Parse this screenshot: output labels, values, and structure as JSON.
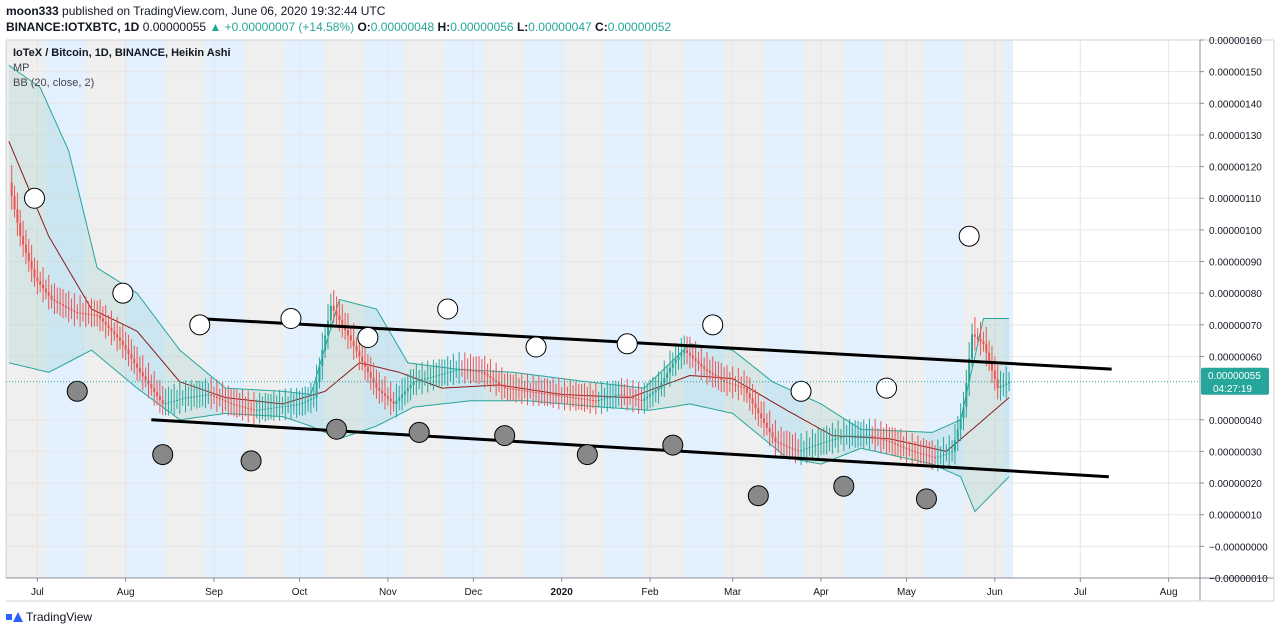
{
  "header": {
    "author": "moon333",
    "published": "published on TradingView.com, June 06, 2020 19:32:44 UTC",
    "symbol": "BINANCE:IOTXBTC, 1D",
    "last": "0.00000055",
    "change": "▲ +0.00000007 (+14.58%)",
    "o_label": "O:",
    "o": "0.00000048",
    "h_label": "H:",
    "h": "0.00000056",
    "l_label": "L:",
    "l": "0.00000047",
    "c_label": "C:",
    "c": "0.00000052"
  },
  "legend": {
    "title": "IoTeX / Bitcoin, 1D, BINANCE, Heikin Ashi",
    "indicator1": "MP",
    "indicator2": "BB (20, close, 2)"
  },
  "footer": {
    "brand": "TradingView"
  },
  "colors": {
    "up": "#26a69a",
    "down": "#ef5350",
    "band": "#26a69a",
    "basis": "#8b1a1a",
    "stripe_blue": "#e3f0fd",
    "stripe_gray": "#efefef",
    "trendline": "#000000"
  },
  "chart_data": {
    "type": "line",
    "title": "IoTeX / Bitcoin, 1D, BINANCE, Heikin Ashi",
    "xlabel": "",
    "ylabel": "",
    "x_range": [
      "2019-06-20",
      "2020-08-12"
    ],
    "ylim": [
      -1e-07,
      1.6e-06
    ],
    "grid": true,
    "x_ticks": [
      {
        "date": "2019-07-01",
        "label": "Jul"
      },
      {
        "date": "2019-08-01",
        "label": "Aug"
      },
      {
        "date": "2019-09-01",
        "label": "Sep"
      },
      {
        "date": "2019-10-01",
        "label": "Oct"
      },
      {
        "date": "2019-11-01",
        "label": "Nov"
      },
      {
        "date": "2019-12-01",
        "label": "Dec"
      },
      {
        "date": "2020-01-01",
        "label": "2020"
      },
      {
        "date": "2020-02-01",
        "label": "Feb"
      },
      {
        "date": "2020-03-01",
        "label": "Mar"
      },
      {
        "date": "2020-04-01",
        "label": "Apr"
      },
      {
        "date": "2020-05-01",
        "label": "May"
      },
      {
        "date": "2020-06-01",
        "label": "Jun"
      },
      {
        "date": "2020-07-01",
        "label": "Jul"
      },
      {
        "date": "2020-08-01",
        "label": "Aug"
      }
    ],
    "y_ticks": [
      {
        "v": 1.6e-06,
        "label": "0.00000160"
      },
      {
        "v": 1.5e-06,
        "label": "0.00000150"
      },
      {
        "v": 1.4e-06,
        "label": "0.00000140"
      },
      {
        "v": 1.3e-06,
        "label": "0.00000130"
      },
      {
        "v": 1.2e-06,
        "label": "0.00000120"
      },
      {
        "v": 1.1e-06,
        "label": "0.00000110"
      },
      {
        "v": 1e-06,
        "label": "0.00000100"
      },
      {
        "v": 9e-07,
        "label": "0.00000090"
      },
      {
        "v": 8e-07,
        "label": "0.00000080"
      },
      {
        "v": 7e-07,
        "label": "0.00000070"
      },
      {
        "v": 6e-07,
        "label": "0.00000060"
      },
      {
        "v": 4e-07,
        "label": "0.00000040"
      },
      {
        "v": 3e-07,
        "label": "0.00000030"
      },
      {
        "v": 2e-07,
        "label": "0.00000020"
      },
      {
        "v": 1e-07,
        "label": "0.00000010"
      },
      {
        "v": 0,
        "label": "−0.00000000"
      },
      {
        "v": -1e-07,
        "label": "−0.00000010"
      }
    ],
    "price_tag": {
      "value": 5.2e-07,
      "label": "0.00000055",
      "countdown": "04:27:19"
    },
    "series": [
      {
        "kind": "close",
        "points": [
          [
            "2019-06-21",
            1.15e-06
          ],
          [
            "2019-06-25",
            9.8e-07
          ],
          [
            "2019-06-30",
            8.5e-07
          ],
          [
            "2019-07-06",
            7.8e-07
          ],
          [
            "2019-07-14",
            7.4e-07
          ],
          [
            "2019-07-22",
            7.3e-07
          ],
          [
            "2019-07-30",
            6.5e-07
          ],
          [
            "2019-08-06",
            5.5e-07
          ],
          [
            "2019-08-14",
            4.5e-07
          ],
          [
            "2019-08-22",
            4.7e-07
          ],
          [
            "2019-08-30",
            4.8e-07
          ],
          [
            "2019-09-07",
            4.5e-07
          ],
          [
            "2019-09-15",
            4.3e-07
          ],
          [
            "2019-09-23",
            4.4e-07
          ],
          [
            "2019-10-01",
            4.5e-07
          ],
          [
            "2019-10-06",
            4.7e-07
          ],
          [
            "2019-10-09",
            6.2e-07
          ],
          [
            "2019-10-12",
            7.6e-07
          ],
          [
            "2019-10-16",
            7e-07
          ],
          [
            "2019-10-22",
            6e-07
          ],
          [
            "2019-10-28",
            5e-07
          ],
          [
            "2019-11-03",
            4.5e-07
          ],
          [
            "2019-11-10",
            5.2e-07
          ],
          [
            "2019-11-18",
            5.4e-07
          ],
          [
            "2019-11-26",
            5.6e-07
          ],
          [
            "2019-12-04",
            5.5e-07
          ],
          [
            "2019-12-12",
            5e-07
          ],
          [
            "2019-12-20",
            4.9e-07
          ],
          [
            "2019-12-28",
            4.8e-07
          ],
          [
            "2020-01-05",
            4.7e-07
          ],
          [
            "2020-01-13",
            4.6e-07
          ],
          [
            "2020-01-21",
            4.8e-07
          ],
          [
            "2020-01-29",
            4.6e-07
          ],
          [
            "2020-02-04",
            5e-07
          ],
          [
            "2020-02-09",
            5.8e-07
          ],
          [
            "2020-02-13",
            6.2e-07
          ],
          [
            "2020-02-20",
            5.6e-07
          ],
          [
            "2020-02-27",
            5.2e-07
          ],
          [
            "2020-03-05",
            5e-07
          ],
          [
            "2020-03-10",
            4.2e-07
          ],
          [
            "2020-03-16",
            3.3e-07
          ],
          [
            "2020-03-24",
            3e-07
          ],
          [
            "2020-04-02",
            3.3e-07
          ],
          [
            "2020-04-10",
            3.5e-07
          ],
          [
            "2020-04-18",
            3.5e-07
          ],
          [
            "2020-04-25",
            3.3e-07
          ],
          [
            "2020-05-03",
            3e-07
          ],
          [
            "2020-05-11",
            2.8e-07
          ],
          [
            "2020-05-17",
            3e-07
          ],
          [
            "2020-05-21",
            4.4e-07
          ],
          [
            "2020-05-24",
            6.7e-07
          ],
          [
            "2020-05-28",
            6.4e-07
          ],
          [
            "2020-06-02",
            5e-07
          ],
          [
            "2020-06-06",
            5.2e-07
          ]
        ]
      },
      {
        "kind": "basis",
        "points": [
          [
            "2019-06-21",
            1.28e-06
          ],
          [
            "2019-07-05",
            9.8e-07
          ],
          [
            "2019-07-20",
            7.5e-07
          ],
          [
            "2019-08-05",
            6.8e-07
          ],
          [
            "2019-08-20",
            5.2e-07
          ],
          [
            "2019-09-05",
            4.7e-07
          ],
          [
            "2019-09-25",
            4.5e-07
          ],
          [
            "2019-10-10",
            4.9e-07
          ],
          [
            "2019-10-22",
            5.8e-07
          ],
          [
            "2019-11-05",
            5.5e-07
          ],
          [
            "2019-11-20",
            5e-07
          ],
          [
            "2019-12-10",
            5.1e-07
          ],
          [
            "2020-01-01",
            4.8e-07
          ],
          [
            "2020-01-25",
            4.7e-07
          ],
          [
            "2020-02-15",
            5.4e-07
          ],
          [
            "2020-03-01",
            5.3e-07
          ],
          [
            "2020-03-20",
            4.3e-07
          ],
          [
            "2020-04-05",
            3.5e-07
          ],
          [
            "2020-04-25",
            3.4e-07
          ],
          [
            "2020-05-15",
            3e-07
          ],
          [
            "2020-05-28",
            4e-07
          ],
          [
            "2020-06-06",
            4.7e-07
          ]
        ]
      },
      {
        "kind": "upper",
        "points": [
          [
            "2019-06-21",
            1.52e-06
          ],
          [
            "2019-07-02",
            1.45e-06
          ],
          [
            "2019-07-12",
            1.25e-06
          ],
          [
            "2019-07-22",
            8.8e-07
          ],
          [
            "2019-08-05",
            8e-07
          ],
          [
            "2019-08-20",
            6.2e-07
          ],
          [
            "2019-09-05",
            5e-07
          ],
          [
            "2019-09-25",
            4.9e-07
          ],
          [
            "2019-10-05",
            4.8e-07
          ],
          [
            "2019-10-15",
            7.8e-07
          ],
          [
            "2019-10-28",
            7.5e-07
          ],
          [
            "2019-11-08",
            5.8e-07
          ],
          [
            "2019-11-25",
            5.6e-07
          ],
          [
            "2019-12-15",
            5.5e-07
          ],
          [
            "2020-01-10",
            5.2e-07
          ],
          [
            "2020-01-30",
            5e-07
          ],
          [
            "2020-02-15",
            6.4e-07
          ],
          [
            "2020-03-01",
            6.2e-07
          ],
          [
            "2020-03-15",
            5.2e-07
          ],
          [
            "2020-04-01",
            4.5e-07
          ],
          [
            "2020-04-15",
            3.7e-07
          ],
          [
            "2020-05-10",
            3.6e-07
          ],
          [
            "2020-05-20",
            4e-07
          ],
          [
            "2020-05-28",
            7.2e-07
          ],
          [
            "2020-06-06",
            7.2e-07
          ]
        ]
      },
      {
        "kind": "lower",
        "points": [
          [
            "2019-06-21",
            5.8e-07
          ],
          [
            "2019-07-05",
            5.5e-07
          ],
          [
            "2019-07-20",
            6.2e-07
          ],
          [
            "2019-08-05",
            5e-07
          ],
          [
            "2019-08-20",
            4e-07
          ],
          [
            "2019-09-05",
            4.2e-07
          ],
          [
            "2019-09-25",
            4.1e-07
          ],
          [
            "2019-10-05",
            3.8e-07
          ],
          [
            "2019-10-15",
            3.4e-07
          ],
          [
            "2019-10-28",
            3.8e-07
          ],
          [
            "2019-11-10",
            4.4e-07
          ],
          [
            "2019-11-30",
            4.6e-07
          ],
          [
            "2019-12-20",
            4.6e-07
          ],
          [
            "2020-01-15",
            4.4e-07
          ],
          [
            "2020-02-01",
            4.3e-07
          ],
          [
            "2020-02-15",
            4.5e-07
          ],
          [
            "2020-03-01",
            4.2e-07
          ],
          [
            "2020-03-20",
            2.8e-07
          ],
          [
            "2020-04-01",
            2.6e-07
          ],
          [
            "2020-04-15",
            3.1e-07
          ],
          [
            "2020-05-10",
            2.6e-07
          ],
          [
            "2020-05-20",
            2.2e-07
          ],
          [
            "2020-05-25",
            1.1e-07
          ],
          [
            "2020-06-06",
            2.2e-07
          ]
        ]
      }
    ],
    "trendlines": [
      {
        "from": [
          "2019-08-26",
          7.2e-07
        ],
        "to": [
          "2020-07-12",
          5.6e-07
        ]
      },
      {
        "from": [
          "2019-08-10",
          4e-07
        ],
        "to": [
          "2020-07-11",
          2.2e-07
        ]
      }
    ],
    "markers_open": [
      [
        "2019-06-30",
        1.1e-06
      ],
      [
        "2019-07-31",
        8e-07
      ],
      [
        "2019-08-27",
        7e-07
      ],
      [
        "2019-09-28",
        7.2e-07
      ],
      [
        "2019-10-25",
        6.6e-07
      ],
      [
        "2019-11-22",
        7.5e-07
      ],
      [
        "2019-12-23",
        6.3e-07
      ],
      [
        "2020-01-24",
        6.4e-07
      ],
      [
        "2020-02-23",
        7e-07
      ],
      [
        "2020-03-25",
        4.9e-07
      ],
      [
        "2020-04-24",
        5e-07
      ],
      [
        "2020-05-23",
        9.8e-07
      ]
    ],
    "markers_filled": [
      [
        "2019-07-15",
        4.9e-07
      ],
      [
        "2019-08-14",
        2.9e-07
      ],
      [
        "2019-09-14",
        2.7e-07
      ],
      [
        "2019-10-14",
        3.7e-07
      ],
      [
        "2019-11-12",
        3.6e-07
      ],
      [
        "2019-12-12",
        3.5e-07
      ],
      [
        "2020-01-10",
        2.9e-07
      ],
      [
        "2020-02-09",
        3.2e-07
      ],
      [
        "2020-03-10",
        1.6e-07
      ],
      [
        "2020-04-09",
        1.9e-07
      ],
      [
        "2020-05-08",
        1.5e-07
      ]
    ]
  }
}
